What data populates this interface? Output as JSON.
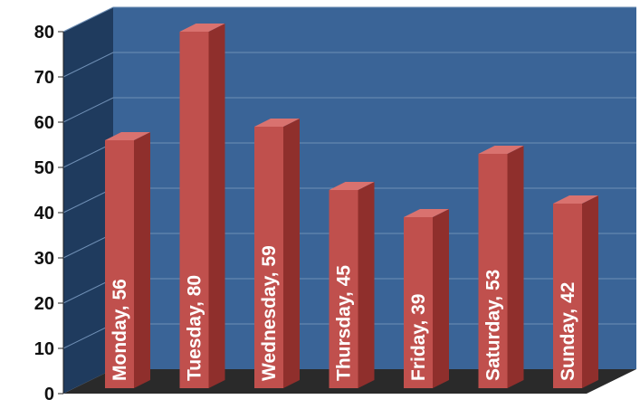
{
  "chart_data": {
    "type": "bar",
    "title": "",
    "xlabel": "",
    "ylabel": "",
    "categories": [
      "Monday",
      "Tuesday",
      "Wednesday",
      "Thursday",
      "Friday",
      "Saturday",
      "Sunday"
    ],
    "values": [
      56,
      80,
      59,
      45,
      39,
      53,
      42
    ],
    "data_labels": [
      "Monday, 56",
      "Tuesday, 80",
      "Wednesday, 59",
      "Thursday, 45",
      "Friday, 39",
      "Saturday, 53",
      "Sunday, 42"
    ],
    "ylim": [
      0,
      80
    ],
    "yticks": [
      "0",
      "10",
      "20",
      "30",
      "40",
      "50",
      "60",
      "70",
      "80"
    ],
    "grid": true,
    "legend": "none",
    "style": "3d-column",
    "colors": {
      "back_wall": "#3a6497",
      "side_wall": "#1f3b5e",
      "floor": "#2a2a2a",
      "bar_front": "#c0504d",
      "bar_side": "#8f2f2c",
      "bar_top": "#d9726f",
      "gridline": "#6f8fb5",
      "label_text": "#ffffff",
      "tick_text": "#111111"
    }
  }
}
